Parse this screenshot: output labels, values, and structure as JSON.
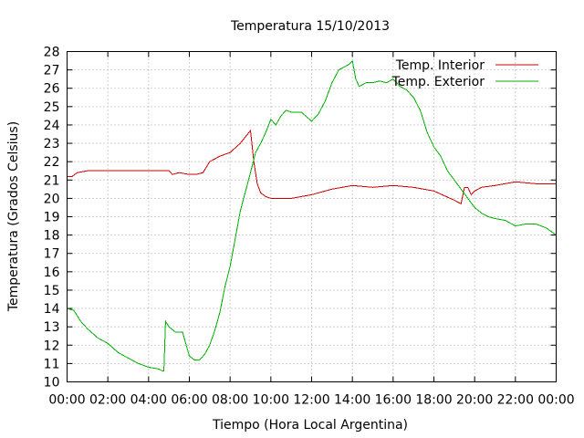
{
  "chart_data": {
    "type": "line",
    "title": "Temperatura 15/10/2013",
    "xlabel": "Tiempo (Hora Local Argentina)",
    "ylabel": "Temperatura (Grados Celsius)",
    "xlim": [
      "00:00",
      "24:00"
    ],
    "ylim": [
      10,
      28
    ],
    "x_ticks": [
      "00:00",
      "02:00",
      "04:00",
      "06:00",
      "08:00",
      "10:00",
      "12:00",
      "14:00",
      "16:00",
      "18:00",
      "20:00",
      "22:00",
      "00:00"
    ],
    "y_ticks": [
      10,
      11,
      12,
      13,
      14,
      15,
      16,
      17,
      18,
      19,
      20,
      21,
      22,
      23,
      24,
      25,
      26,
      27,
      28
    ],
    "grid": true,
    "legend_position": "top-right",
    "series": [
      {
        "name": "Temp. Interior",
        "color": "#cc0000",
        "x": [
          "00:00",
          "00:15",
          "00:30",
          "01:00",
          "02:00",
          "03:00",
          "04:00",
          "05:00",
          "05:10",
          "05:30",
          "06:00",
          "06:20",
          "06:40",
          "07:00",
          "07:30",
          "08:00",
          "08:30",
          "09:00",
          "09:10",
          "09:20",
          "09:30",
          "09:45",
          "10:00",
          "11:00",
          "12:00",
          "13:00",
          "14:00",
          "15:00",
          "16:00",
          "17:00",
          "18:00",
          "19:00",
          "19:20",
          "19:30",
          "19:40",
          "19:50",
          "20:00",
          "20:20",
          "21:00",
          "22:00",
          "23:00",
          "24:00"
        ],
        "y": [
          21.2,
          21.2,
          21.4,
          21.5,
          21.5,
          21.5,
          21.5,
          21.5,
          21.3,
          21.4,
          21.3,
          21.3,
          21.4,
          22.0,
          22.3,
          22.5,
          23.0,
          23.7,
          22.0,
          20.8,
          20.3,
          20.1,
          20.0,
          20.0,
          20.2,
          20.5,
          20.7,
          20.6,
          20.7,
          20.6,
          20.4,
          19.9,
          19.7,
          20.6,
          20.6,
          20.2,
          20.4,
          20.6,
          20.7,
          20.9,
          20.8,
          20.8
        ]
      },
      {
        "name": "Temp. Exterior",
        "color": "#00b000",
        "x": [
          "00:00",
          "00:20",
          "00:40",
          "01:00",
          "01:30",
          "02:00",
          "02:30",
          "03:00",
          "03:30",
          "04:00",
          "04:30",
          "04:40",
          "04:45",
          "04:50",
          "05:00",
          "05:20",
          "05:40",
          "06:00",
          "06:15",
          "06:30",
          "06:45",
          "07:00",
          "07:15",
          "07:30",
          "07:45",
          "08:00",
          "08:30",
          "09:00",
          "09:15",
          "09:30",
          "09:45",
          "10:00",
          "10:15",
          "10:30",
          "10:45",
          "11:00",
          "11:30",
          "12:00",
          "12:20",
          "12:40",
          "13:00",
          "13:20",
          "13:40",
          "13:50",
          "14:00",
          "14:10",
          "14:20",
          "14:40",
          "15:00",
          "15:20",
          "15:40",
          "16:00",
          "16:20",
          "16:40",
          "17:00",
          "17:20",
          "17:40",
          "18:00",
          "18:20",
          "18:40",
          "19:00",
          "19:20",
          "19:40",
          "20:00",
          "20:20",
          "20:40",
          "21:00",
          "21:30",
          "22:00",
          "22:30",
          "23:00",
          "23:30",
          "24:00"
        ],
        "y": [
          14.0,
          13.9,
          13.3,
          12.9,
          12.4,
          12.1,
          11.6,
          11.3,
          11.0,
          10.8,
          10.7,
          10.6,
          10.6,
          13.3,
          13.0,
          12.7,
          12.7,
          11.4,
          11.2,
          11.2,
          11.5,
          12.0,
          12.8,
          13.8,
          15.2,
          16.3,
          19.3,
          21.4,
          22.5,
          23.0,
          23.6,
          24.3,
          24.0,
          24.5,
          24.8,
          24.7,
          24.7,
          24.2,
          24.6,
          25.3,
          26.3,
          27.0,
          27.2,
          27.3,
          27.5,
          26.5,
          26.1,
          26.3,
          26.3,
          26.4,
          26.3,
          26.5,
          26.1,
          25.9,
          25.5,
          24.8,
          23.6,
          22.8,
          22.3,
          21.5,
          21.0,
          20.5,
          20.0,
          19.5,
          19.2,
          19.0,
          18.9,
          18.8,
          18.5,
          18.6,
          18.6,
          18.4,
          18.0
        ]
      }
    ]
  }
}
